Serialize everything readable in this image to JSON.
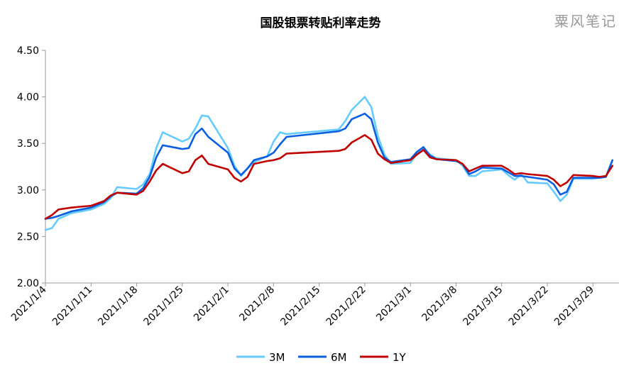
{
  "title": "国股银票转贴利率走势",
  "watermark": "粟风笔记",
  "colors": {
    "3M": "#66ccff",
    "6M": "#0a5fe0",
    "1Y": "#c00000",
    "axis": "#999999"
  },
  "chart_data": {
    "type": "line",
    "title": "国股银票转贴利率走势",
    "xlabel": "",
    "ylabel": "",
    "ylim": [
      2.0,
      4.5
    ],
    "yticks": [
      "2.00",
      "2.50",
      "3.00",
      "3.50",
      "4.00",
      "4.50"
    ],
    "xlim": [
      "2021-01-04",
      "2021-04-02"
    ],
    "xticks": [
      "2021/1/4",
      "2021/1/11",
      "2021/1/18",
      "2021/1/25",
      "2021/2/1",
      "2021/2/8",
      "2021/2/15",
      "2021/2/22",
      "2021/3/1",
      "2021/3/8",
      "2021/3/15",
      "2021/3/22",
      "2021/3/29"
    ],
    "legend_position": "bottom",
    "grid": false,
    "series": [
      {
        "name": "3M",
        "points": [
          [
            "2021-01-04",
            2.57
          ],
          [
            "2021-01-05",
            2.59
          ],
          [
            "2021-01-06",
            2.69
          ],
          [
            "2021-01-08",
            2.75
          ],
          [
            "2021-01-11",
            2.79
          ],
          [
            "2021-01-13",
            2.85
          ],
          [
            "2021-01-14",
            2.91
          ],
          [
            "2021-01-15",
            3.03
          ],
          [
            "2021-01-18",
            3.01
          ],
          [
            "2021-01-19",
            3.06
          ],
          [
            "2021-01-20",
            3.17
          ],
          [
            "2021-01-21",
            3.45
          ],
          [
            "2021-01-22",
            3.62
          ],
          [
            "2021-01-25",
            3.52
          ],
          [
            "2021-01-26",
            3.55
          ],
          [
            "2021-01-27",
            3.66
          ],
          [
            "2021-01-28",
            3.8
          ],
          [
            "2021-01-29",
            3.79
          ],
          [
            "2021-02-01",
            3.45
          ],
          [
            "2021-02-02",
            3.26
          ],
          [
            "2021-02-03",
            3.15
          ],
          [
            "2021-02-04",
            3.23
          ],
          [
            "2021-02-05",
            3.3
          ],
          [
            "2021-02-07",
            3.36
          ],
          [
            "2021-02-08",
            3.52
          ],
          [
            "2021-02-09",
            3.62
          ],
          [
            "2021-02-10",
            3.6
          ],
          [
            "2021-02-18",
            3.65
          ],
          [
            "2021-02-19",
            3.74
          ],
          [
            "2021-02-20",
            3.86
          ],
          [
            "2021-02-22",
            4.0
          ],
          [
            "2021-02-23",
            3.89
          ],
          [
            "2021-02-24",
            3.58
          ],
          [
            "2021-02-25",
            3.38
          ],
          [
            "2021-02-26",
            3.28
          ],
          [
            "2021-03-01",
            3.29
          ],
          [
            "2021-03-02",
            3.39
          ],
          [
            "2021-03-03",
            3.45
          ],
          [
            "2021-03-04",
            3.38
          ],
          [
            "2021-03-05",
            3.34
          ],
          [
            "2021-03-08",
            3.32
          ],
          [
            "2021-03-09",
            3.26
          ],
          [
            "2021-03-10",
            3.15
          ],
          [
            "2021-03-11",
            3.15
          ],
          [
            "2021-03-12",
            3.2
          ],
          [
            "2021-03-15",
            3.22
          ],
          [
            "2021-03-16",
            3.16
          ],
          [
            "2021-03-17",
            3.11
          ],
          [
            "2021-03-18",
            3.17
          ],
          [
            "2021-03-19",
            3.08
          ],
          [
            "2021-03-22",
            3.07
          ],
          [
            "2021-03-23",
            2.98
          ],
          [
            "2021-03-24",
            2.88
          ],
          [
            "2021-03-25",
            2.95
          ],
          [
            "2021-03-26",
            3.12
          ],
          [
            "2021-03-29",
            3.12
          ],
          [
            "2021-03-30",
            3.13
          ],
          [
            "2021-03-31",
            3.14
          ],
          [
            "2021-04-01",
            3.32
          ]
        ]
      },
      {
        "name": "6M",
        "points": [
          [
            "2021-01-04",
            2.69
          ],
          [
            "2021-01-05",
            2.7
          ],
          [
            "2021-01-06",
            2.72
          ],
          [
            "2021-01-08",
            2.77
          ],
          [
            "2021-01-11",
            2.81
          ],
          [
            "2021-01-13",
            2.87
          ],
          [
            "2021-01-14",
            2.93
          ],
          [
            "2021-01-15",
            2.97
          ],
          [
            "2021-01-18",
            2.96
          ],
          [
            "2021-01-19",
            3.02
          ],
          [
            "2021-01-20",
            3.14
          ],
          [
            "2021-01-21",
            3.35
          ],
          [
            "2021-01-22",
            3.48
          ],
          [
            "2021-01-25",
            3.44
          ],
          [
            "2021-01-26",
            3.45
          ],
          [
            "2021-01-27",
            3.6
          ],
          [
            "2021-01-28",
            3.66
          ],
          [
            "2021-01-29",
            3.57
          ],
          [
            "2021-02-01",
            3.4
          ],
          [
            "2021-02-02",
            3.23
          ],
          [
            "2021-02-03",
            3.16
          ],
          [
            "2021-02-04",
            3.23
          ],
          [
            "2021-02-05",
            3.32
          ],
          [
            "2021-02-07",
            3.36
          ],
          [
            "2021-02-08",
            3.4
          ],
          [
            "2021-02-09",
            3.49
          ],
          [
            "2021-02-10",
            3.57
          ],
          [
            "2021-02-18",
            3.63
          ],
          [
            "2021-02-19",
            3.66
          ],
          [
            "2021-02-20",
            3.76
          ],
          [
            "2021-02-22",
            3.82
          ],
          [
            "2021-02-23",
            3.76
          ],
          [
            "2021-02-24",
            3.51
          ],
          [
            "2021-02-25",
            3.35
          ],
          [
            "2021-02-26",
            3.3
          ],
          [
            "2021-03-01",
            3.33
          ],
          [
            "2021-03-02",
            3.41
          ],
          [
            "2021-03-03",
            3.46
          ],
          [
            "2021-03-04",
            3.37
          ],
          [
            "2021-03-05",
            3.33
          ],
          [
            "2021-03-08",
            3.31
          ],
          [
            "2021-03-09",
            3.28
          ],
          [
            "2021-03-10",
            3.17
          ],
          [
            "2021-03-11",
            3.2
          ],
          [
            "2021-03-12",
            3.24
          ],
          [
            "2021-03-15",
            3.23
          ],
          [
            "2021-03-16",
            3.19
          ],
          [
            "2021-03-17",
            3.15
          ],
          [
            "2021-03-18",
            3.15
          ],
          [
            "2021-03-19",
            3.14
          ],
          [
            "2021-03-22",
            3.11
          ],
          [
            "2021-03-23",
            3.06
          ],
          [
            "2021-03-24",
            2.95
          ],
          [
            "2021-03-25",
            2.98
          ],
          [
            "2021-03-26",
            3.13
          ],
          [
            "2021-03-29",
            3.13
          ],
          [
            "2021-03-30",
            3.13
          ],
          [
            "2021-03-31",
            3.14
          ],
          [
            "2021-04-01",
            3.32
          ]
        ]
      },
      {
        "name": "1Y",
        "points": [
          [
            "2021-01-04",
            2.69
          ],
          [
            "2021-01-05",
            2.73
          ],
          [
            "2021-01-06",
            2.79
          ],
          [
            "2021-01-08",
            2.81
          ],
          [
            "2021-01-11",
            2.83
          ],
          [
            "2021-01-13",
            2.88
          ],
          [
            "2021-01-14",
            2.94
          ],
          [
            "2021-01-15",
            2.97
          ],
          [
            "2021-01-18",
            2.95
          ],
          [
            "2021-01-19",
            2.99
          ],
          [
            "2021-01-20",
            3.09
          ],
          [
            "2021-01-21",
            3.21
          ],
          [
            "2021-01-22",
            3.28
          ],
          [
            "2021-01-25",
            3.18
          ],
          [
            "2021-01-26",
            3.2
          ],
          [
            "2021-01-27",
            3.32
          ],
          [
            "2021-01-28",
            3.37
          ],
          [
            "2021-01-29",
            3.28
          ],
          [
            "2021-02-01",
            3.22
          ],
          [
            "2021-02-02",
            3.13
          ],
          [
            "2021-02-03",
            3.09
          ],
          [
            "2021-02-04",
            3.14
          ],
          [
            "2021-02-05",
            3.28
          ],
          [
            "2021-02-07",
            3.31
          ],
          [
            "2021-02-08",
            3.32
          ],
          [
            "2021-02-09",
            3.34
          ],
          [
            "2021-02-10",
            3.39
          ],
          [
            "2021-02-18",
            3.42
          ],
          [
            "2021-02-19",
            3.44
          ],
          [
            "2021-02-20",
            3.51
          ],
          [
            "2021-02-22",
            3.59
          ],
          [
            "2021-02-23",
            3.54
          ],
          [
            "2021-02-24",
            3.39
          ],
          [
            "2021-02-25",
            3.33
          ],
          [
            "2021-02-26",
            3.29
          ],
          [
            "2021-03-01",
            3.32
          ],
          [
            "2021-03-02",
            3.38
          ],
          [
            "2021-03-03",
            3.43
          ],
          [
            "2021-03-04",
            3.35
          ],
          [
            "2021-03-05",
            3.33
          ],
          [
            "2021-03-08",
            3.32
          ],
          [
            "2021-03-09",
            3.28
          ],
          [
            "2021-03-10",
            3.2
          ],
          [
            "2021-03-11",
            3.23
          ],
          [
            "2021-03-12",
            3.26
          ],
          [
            "2021-03-15",
            3.26
          ],
          [
            "2021-03-16",
            3.22
          ],
          [
            "2021-03-17",
            3.17
          ],
          [
            "2021-03-18",
            3.18
          ],
          [
            "2021-03-19",
            3.17
          ],
          [
            "2021-03-22",
            3.15
          ],
          [
            "2021-03-23",
            3.11
          ],
          [
            "2021-03-24",
            3.04
          ],
          [
            "2021-03-25",
            3.08
          ],
          [
            "2021-03-26",
            3.16
          ],
          [
            "2021-03-29",
            3.15
          ],
          [
            "2021-03-30",
            3.14
          ],
          [
            "2021-03-31",
            3.15
          ],
          [
            "2021-04-01",
            3.26
          ]
        ]
      }
    ]
  }
}
